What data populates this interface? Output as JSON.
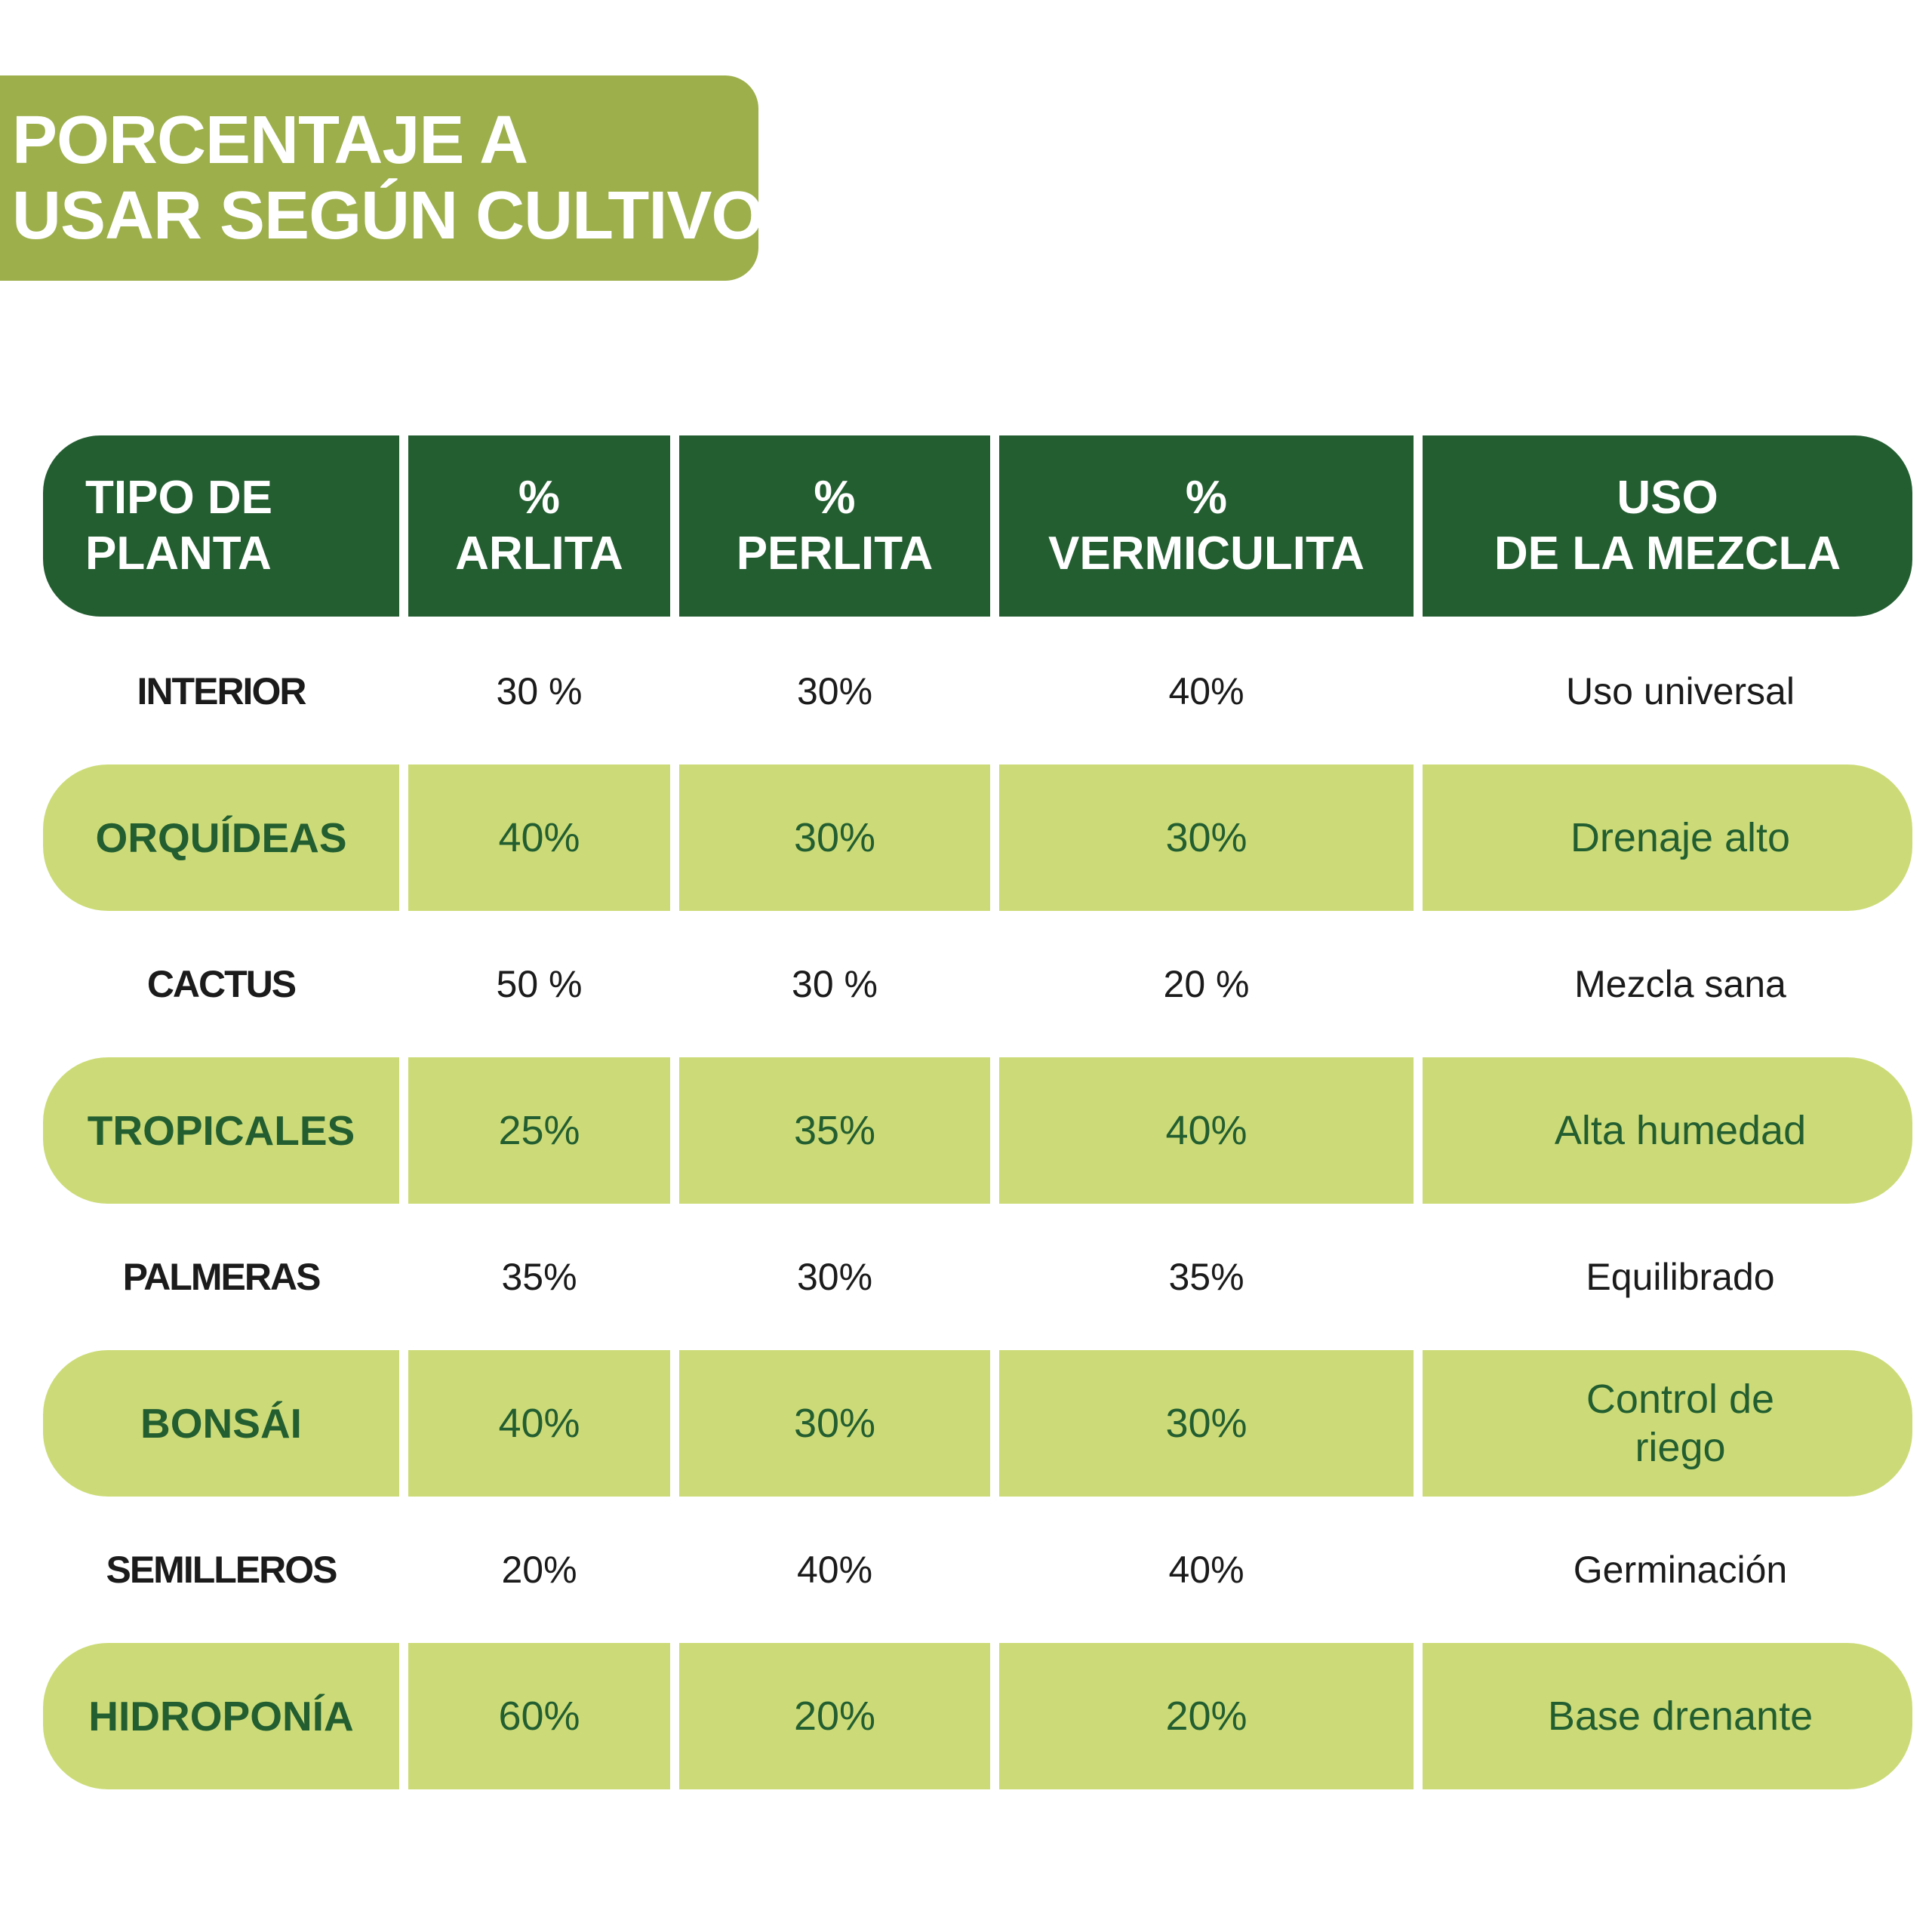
{
  "title": {
    "line1": "PORCENTAJE A",
    "line2": "USAR SEGÚN CULTIVO"
  },
  "colors": {
    "title_banner": "#9caf4b",
    "header_bg": "#235e31",
    "shaded_row_bg": "#ccdb77",
    "shaded_row_text": "#235e31",
    "plain_row_text": "#1b1b1b"
  },
  "table": {
    "headers": [
      [
        "TIPO DE",
        "PLANTA"
      ],
      [
        "%",
        "ARLITA"
      ],
      [
        "%",
        "PERLITA"
      ],
      [
        "%",
        "VERMICULITA"
      ],
      [
        "USO",
        "DE LA MEZCLA"
      ]
    ],
    "rows": [
      {
        "planta": "INTERIOR",
        "arlita": "30 %",
        "perlita": "30%",
        "vermiculita": "40%",
        "uso": [
          "Uso universal"
        ],
        "shaded": false
      },
      {
        "planta": "ORQUÍDEAS",
        "arlita": "40%",
        "perlita": "30%",
        "vermiculita": "30%",
        "uso": [
          "Drenaje alto"
        ],
        "shaded": true
      },
      {
        "planta": "CACTUS",
        "arlita": "50 %",
        "perlita": "30 %",
        "vermiculita": "20 %",
        "uso": [
          "Mezcla sana"
        ],
        "shaded": false
      },
      {
        "planta": "TROPICALES",
        "arlita": "25%",
        "perlita": "35%",
        "vermiculita": "40%",
        "uso": [
          "Alta humedad"
        ],
        "shaded": true
      },
      {
        "planta": "PALMERAS",
        "arlita": "35%",
        "perlita": "30%",
        "vermiculita": "35%",
        "uso": [
          "Equilibrado"
        ],
        "shaded": false
      },
      {
        "planta": "BONSÁI",
        "arlita": "40%",
        "perlita": "30%",
        "vermiculita": "30%",
        "uso": [
          "Control de",
          "riego"
        ],
        "shaded": true
      },
      {
        "planta": "SEMILLEROS",
        "arlita": "20%",
        "perlita": "40%",
        "vermiculita": "40%",
        "uso": [
          "Germinación"
        ],
        "shaded": false
      },
      {
        "planta": "HIDROPONÍA",
        "arlita": "60%",
        "perlita": "20%",
        "vermiculita": "20%",
        "uso": [
          "Base drenante"
        ],
        "shaded": true
      }
    ]
  }
}
